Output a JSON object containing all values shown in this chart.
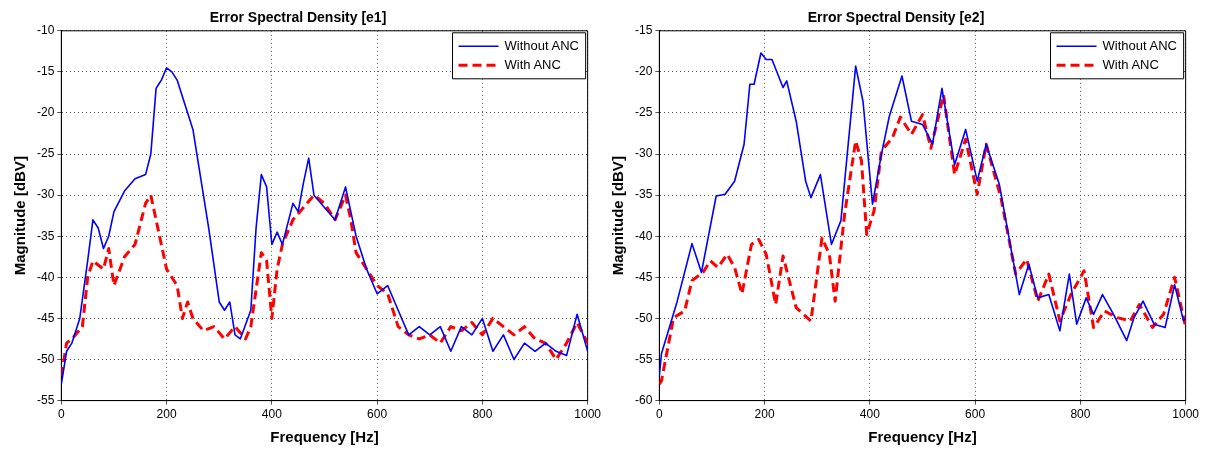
{
  "chart_data": [
    {
      "type": "line",
      "title": "Error Spectral Density [e1]",
      "xlabel": "Frequency [Hz]",
      "ylabel": "Magnitude [dBV]",
      "xlim": [
        0,
        1000
      ],
      "xticks": [
        0,
        200,
        400,
        600,
        800,
        1000
      ],
      "ylim": [
        -55,
        -10
      ],
      "yticks": [
        -55,
        -50,
        -45,
        -40,
        -35,
        -30,
        -25,
        -20,
        -15,
        -10
      ],
      "grid": true,
      "legend": "top right",
      "series": [
        {
          "name": "Without ANC",
          "color": "#0000ff",
          "line_style": "solid",
          "x": [
            0,
            10,
            20,
            35,
            50,
            60,
            70,
            80,
            90,
            100,
            120,
            140,
            160,
            170,
            180,
            185,
            190,
            200,
            210,
            220,
            240,
            250,
            260,
            280,
            300,
            310,
            320,
            330,
            340,
            360,
            370,
            380,
            390,
            400,
            410,
            420,
            440,
            450,
            460,
            470,
            480,
            500,
            520,
            540,
            550,
            560,
            580,
            600,
            620,
            640,
            660,
            680,
            700,
            720,
            740,
            760,
            780,
            800,
            820,
            840,
            860,
            880,
            900,
            920,
            940,
            960,
            980,
            1000
          ],
          "values": [
            -53,
            -49,
            -48,
            -45,
            -38,
            -33,
            -34,
            -36.5,
            -35,
            -32,
            -29.5,
            -28,
            -27.5,
            -25,
            -17,
            -16.5,
            -16,
            -14.5,
            -15,
            -16,
            -20,
            -22,
            -26,
            -34,
            -43,
            -44,
            -43,
            -47,
            -47.5,
            -44,
            -34,
            -27.5,
            -29,
            -36,
            -34.5,
            -36,
            -31,
            -32,
            -28.5,
            -25.5,
            -30,
            -31.5,
            -33,
            -29,
            -32,
            -35,
            -39,
            -42,
            -41,
            -44,
            -47,
            -46,
            -47,
            -46,
            -49,
            -46,
            -47,
            -45,
            -49,
            -47,
            -50,
            -48,
            -49,
            -48,
            -49,
            -49.5,
            -44.5,
            -49
          ]
        },
        {
          "name": "With ANC",
          "color": "#ff0000",
          "line_style": "dashed",
          "x": [
            0,
            10,
            20,
            40,
            50,
            60,
            80,
            90,
            100,
            120,
            140,
            160,
            170,
            180,
            200,
            220,
            230,
            240,
            250,
            270,
            290,
            310,
            330,
            350,
            360,
            380,
            390,
            400,
            410,
            420,
            440,
            460,
            480,
            500,
            520,
            540,
            550,
            560,
            580,
            600,
            620,
            640,
            660,
            680,
            700,
            720,
            740,
            760,
            780,
            800,
            820,
            840,
            860,
            880,
            900,
            920,
            940,
            960,
            980,
            1000
          ],
          "values": [
            -52,
            -48,
            -47.5,
            -46,
            -40,
            -38,
            -39,
            -36.5,
            -41,
            -37.5,
            -36,
            -31,
            -30,
            -33,
            -39,
            -41,
            -45,
            -43,
            -45,
            -46.5,
            -46,
            -47.5,
            -46,
            -47.5,
            -46,
            -37,
            -38,
            -45,
            -39,
            -36,
            -33,
            -31.5,
            -30,
            -31,
            -33,
            -30,
            -33,
            -37,
            -39,
            -41,
            -42,
            -46,
            -47,
            -47.5,
            -47,
            -48,
            -46,
            -46.5,
            -45.5,
            -47,
            -45,
            -46,
            -47,
            -46,
            -47.5,
            -48,
            -50,
            -48,
            -45.5,
            -48
          ]
        }
      ]
    },
    {
      "type": "line",
      "title": "Error Spectral Density [e2]",
      "xlabel": "Frequency [Hz]",
      "ylabel": "Magnitude [dBV]",
      "xlim": [
        0,
        1000
      ],
      "xticks": [
        0,
        200,
        400,
        600,
        800,
        1000
      ],
      "ylim": [
        -60,
        -15
      ],
      "yticks": [
        -60,
        -55,
        -50,
        -45,
        -40,
        -35,
        -30,
        -25,
        -20,
        -15
      ],
      "grid": true,
      "legend": "top right",
      "series": [
        {
          "name": "Without ANC",
          "color": "#0000ff",
          "line_style": "solid",
          "x": [
            0,
            4,
            34,
            62,
            80,
            108,
            125,
            143,
            161,
            172,
            180,
            193,
            203,
            214,
            235,
            242,
            260,
            278,
            288,
            306,
            327,
            345,
            373,
            387,
            405,
            422,
            437,
            461,
            479,
            500,
            519,
            537,
            561,
            582,
            604,
            621,
            646,
            684,
            702,
            719,
            740,
            761,
            779,
            793,
            811,
            825,
            842,
            863,
            888,
            902,
            919,
            940,
            961,
            979,
            996,
            1000
          ],
          "values": [
            -57,
            -54.3,
            -47.9,
            -40.9,
            -44.4,
            -35.1,
            -34.9,
            -33.3,
            -28.8,
            -21.5,
            -21.5,
            -17.7,
            -18.5,
            -18.5,
            -21.9,
            -21.1,
            -26,
            -33.3,
            -35.3,
            -32.5,
            -41,
            -38.1,
            -19.3,
            -23.6,
            -36.1,
            -30,
            -25.4,
            -20.5,
            -26,
            -26.4,
            -28.8,
            -22,
            -31.3,
            -27,
            -33.3,
            -28.8,
            -33.7,
            -47.1,
            -43.4,
            -47.5,
            -47.1,
            -51.5,
            -44.6,
            -50.7,
            -47.5,
            -49.5,
            -47.1,
            -49.5,
            -52.7,
            -49.9,
            -47.9,
            -50.7,
            -51.1,
            -45.9,
            -50.3,
            -50
          ]
        },
        {
          "name": "With ANC",
          "color": "#ff0000",
          "line_style": "dashed",
          "x": [
            0,
            4,
            27,
            48,
            62,
            83,
            97,
            111,
            129,
            143,
            157,
            175,
            189,
            203,
            221,
            235,
            260,
            288,
            309,
            323,
            334,
            352,
            373,
            384,
            394,
            408,
            422,
            443,
            458,
            479,
            500,
            516,
            540,
            561,
            582,
            604,
            621,
            649,
            677,
            698,
            719,
            740,
            761,
            782,
            807,
            825,
            846,
            870,
            895,
            912,
            937,
            958,
            979,
            996,
            1000
          ],
          "values": [
            -58,
            -57.6,
            -49.9,
            -49.1,
            -45.4,
            -44.4,
            -43,
            -43.8,
            -42.2,
            -43.8,
            -47,
            -41,
            -40.4,
            -42.2,
            -48.3,
            -42.4,
            -48.7,
            -50.3,
            -40.2,
            -42.2,
            -47.9,
            -37.3,
            -28.4,
            -30.8,
            -39.8,
            -36.9,
            -29.6,
            -28,
            -25.5,
            -27.6,
            -25.2,
            -29.3,
            -22.8,
            -32.5,
            -28.2,
            -34.9,
            -28.8,
            -35.3,
            -44.6,
            -42.8,
            -47.9,
            -44.6,
            -50.3,
            -47.1,
            -44.2,
            -51.1,
            -49.1,
            -49.9,
            -50.3,
            -48.3,
            -51.1,
            -49.5,
            -45,
            -49.9,
            -51
          ]
        }
      ]
    }
  ]
}
